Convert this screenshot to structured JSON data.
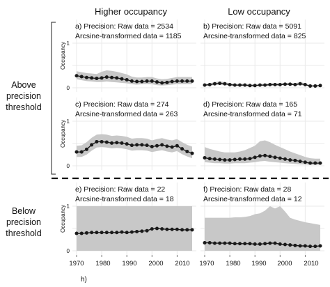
{
  "column_headers": [
    "Higher occupancy",
    "Low occupancy"
  ],
  "row_labels": {
    "above": [
      "Above",
      "precision",
      "threshold"
    ],
    "below": [
      "Below",
      "precision",
      "threshold"
    ]
  },
  "ylabel": "Occupancy",
  "xtick_labels": [
    "1970",
    "1980",
    "1990",
    "2000",
    "2010"
  ],
  "footer_label": "h)",
  "chart_data": [
    {
      "type": "line",
      "panel": "a",
      "annotation_line1": "a) Precision: Raw data = 2534",
      "annotation_line2": "Arcsine-transformed data = 1185",
      "xlim": [
        1970,
        2016
      ],
      "ylim": [
        0,
        1
      ],
      "yticks": [
        "0",
        "1"
      ],
      "x": [
        1970,
        1972,
        1974,
        1976,
        1978,
        1980,
        1982,
        1984,
        1986,
        1988,
        1990,
        1992,
        1994,
        1996,
        1998,
        2000,
        2002,
        2004,
        2006,
        2008,
        2010,
        2012,
        2014,
        2016
      ],
      "y": [
        0.27,
        0.25,
        0.23,
        0.22,
        0.21,
        0.22,
        0.24,
        0.23,
        0.22,
        0.2,
        0.18,
        0.15,
        0.14,
        0.14,
        0.15,
        0.15,
        0.13,
        0.11,
        0.12,
        0.14,
        0.15,
        0.15,
        0.15,
        0.15
      ],
      "lower": [
        0.19,
        0.17,
        0.15,
        0.14,
        0.13,
        0.13,
        0.14,
        0.13,
        0.12,
        0.11,
        0.1,
        0.08,
        0.07,
        0.08,
        0.08,
        0.08,
        0.06,
        0.05,
        0.06,
        0.07,
        0.08,
        0.08,
        0.08,
        0.08
      ],
      "upper": [
        0.37,
        0.35,
        0.33,
        0.32,
        0.31,
        0.36,
        0.39,
        0.38,
        0.36,
        0.33,
        0.3,
        0.25,
        0.23,
        0.23,
        0.24,
        0.24,
        0.21,
        0.19,
        0.2,
        0.22,
        0.24,
        0.24,
        0.24,
        0.24
      ]
    },
    {
      "type": "line",
      "panel": "b",
      "annotation_line1": "b) Precision: Raw data = 5091",
      "annotation_line2": "Arcsine-transformed data = 825",
      "xlim": [
        1970,
        2016
      ],
      "ylim": [
        0,
        1
      ],
      "yticks": [],
      "x": [
        1970,
        1972,
        1974,
        1976,
        1978,
        1980,
        1982,
        1984,
        1986,
        1988,
        1990,
        1992,
        1994,
        1996,
        1998,
        2000,
        2002,
        2004,
        2006,
        2008,
        2010,
        2012,
        2014,
        2016
      ],
      "y": [
        0.06,
        0.07,
        0.09,
        0.1,
        0.09,
        0.07,
        0.06,
        0.06,
        0.06,
        0.05,
        0.05,
        0.06,
        0.06,
        0.07,
        0.07,
        0.07,
        0.08,
        0.08,
        0.07,
        0.09,
        0.07,
        0.04,
        0.04,
        0.05
      ],
      "lower": [
        0.04,
        0.05,
        0.06,
        0.07,
        0.06,
        0.05,
        0.04,
        0.04,
        0.04,
        0.03,
        0.03,
        0.04,
        0.04,
        0.05,
        0.05,
        0.05,
        0.06,
        0.06,
        0.05,
        0.06,
        0.05,
        0.03,
        0.03,
        0.03
      ],
      "upper": [
        0.09,
        0.1,
        0.13,
        0.14,
        0.13,
        0.1,
        0.09,
        0.09,
        0.09,
        0.08,
        0.08,
        0.09,
        0.09,
        0.1,
        0.1,
        0.1,
        0.11,
        0.11,
        0.1,
        0.13,
        0.1,
        0.06,
        0.06,
        0.07
      ]
    },
    {
      "type": "line",
      "panel": "c",
      "annotation_line1": "c) Precision: Raw data = 274",
      "annotation_line2": "Arcsine-transformed data = 263",
      "xlim": [
        1970,
        2016
      ],
      "ylim": [
        0,
        1
      ],
      "yticks": [
        "0",
        "1"
      ],
      "x": [
        1970,
        1972,
        1974,
        1976,
        1978,
        1980,
        1982,
        1984,
        1986,
        1988,
        1990,
        1992,
        1994,
        1996,
        1998,
        2000,
        2002,
        2004,
        2006,
        2008,
        2010,
        2012,
        2014,
        2016
      ],
      "y": [
        0.31,
        0.31,
        0.37,
        0.47,
        0.54,
        0.54,
        0.53,
        0.51,
        0.52,
        0.51,
        0.49,
        0.46,
        0.47,
        0.47,
        0.46,
        0.43,
        0.45,
        0.47,
        0.44,
        0.42,
        0.45,
        0.38,
        0.32,
        0.28
      ],
      "lower": [
        0.2,
        0.2,
        0.25,
        0.34,
        0.41,
        0.42,
        0.41,
        0.39,
        0.4,
        0.39,
        0.37,
        0.34,
        0.35,
        0.35,
        0.34,
        0.31,
        0.33,
        0.35,
        0.32,
        0.3,
        0.33,
        0.26,
        0.21,
        0.17
      ],
      "upper": [
        0.45,
        0.46,
        0.53,
        0.63,
        0.7,
        0.71,
        0.7,
        0.67,
        0.68,
        0.67,
        0.65,
        0.61,
        0.62,
        0.62,
        0.61,
        0.57,
        0.6,
        0.62,
        0.59,
        0.57,
        0.6,
        0.53,
        0.47,
        0.43
      ]
    },
    {
      "type": "line",
      "panel": "d",
      "annotation_line1": "d) Precision: Raw data = 165",
      "annotation_line2": "Arcsine-transformed data = 71",
      "xlim": [
        1970,
        2016
      ],
      "ylim": [
        0,
        1
      ],
      "yticks": [],
      "x": [
        1970,
        1972,
        1974,
        1976,
        1978,
        1980,
        1982,
        1984,
        1986,
        1988,
        1990,
        1992,
        1994,
        1996,
        1998,
        2000,
        2002,
        2004,
        2006,
        2008,
        2010,
        2012,
        2014,
        2016
      ],
      "y": [
        0.18,
        0.16,
        0.15,
        0.14,
        0.13,
        0.13,
        0.14,
        0.15,
        0.15,
        0.16,
        0.19,
        0.22,
        0.23,
        0.21,
        0.19,
        0.17,
        0.15,
        0.13,
        0.12,
        0.1,
        0.08,
        0.06,
        0.06,
        0.06
      ],
      "lower": [
        0.08,
        0.07,
        0.06,
        0.06,
        0.05,
        0.05,
        0.06,
        0.06,
        0.06,
        0.07,
        0.08,
        0.1,
        0.11,
        0.09,
        0.08,
        0.07,
        0.06,
        0.05,
        0.04,
        0.03,
        0.03,
        0.02,
        0.02,
        0.02
      ],
      "upper": [
        0.42,
        0.38,
        0.35,
        0.32,
        0.3,
        0.3,
        0.3,
        0.32,
        0.35,
        0.4,
        0.45,
        0.55,
        0.57,
        0.53,
        0.47,
        0.42,
        0.37,
        0.32,
        0.28,
        0.24,
        0.2,
        0.17,
        0.16,
        0.16
      ]
    },
    {
      "type": "line",
      "panel": "e",
      "annotation_line1": "e) Precision: Raw data = 22",
      "annotation_line2": "Arcsine-transformed data = 18",
      "xlim": [
        1970,
        2016
      ],
      "ylim": [
        0,
        1
      ],
      "yticks": [
        "0",
        "1"
      ],
      "x": [
        1970,
        1972,
        1974,
        1976,
        1978,
        1980,
        1982,
        1984,
        1986,
        1988,
        1990,
        1992,
        1994,
        1996,
        1998,
        2000,
        2002,
        2004,
        2006,
        2008,
        2010,
        2012,
        2014,
        2016
      ],
      "y": [
        0.39,
        0.39,
        0.4,
        0.41,
        0.41,
        0.41,
        0.41,
        0.41,
        0.41,
        0.42,
        0.41,
        0.42,
        0.43,
        0.44,
        0.45,
        0.49,
        0.5,
        0.49,
        0.48,
        0.48,
        0.48,
        0.47,
        0.47,
        0.47
      ],
      "lower": [
        0.0,
        0.0,
        0.0,
        0.0,
        0.0,
        0.0,
        0.0,
        0.0,
        0.0,
        0.0,
        0.0,
        0.0,
        0.0,
        0.0,
        0.0,
        0.0,
        0.0,
        0.0,
        0.0,
        0.0,
        0.0,
        0.0,
        0.0,
        0.0
      ],
      "upper": [
        1.0,
        1.0,
        1.0,
        1.0,
        1.0,
        1.0,
        1.0,
        1.0,
        1.0,
        1.0,
        1.0,
        1.0,
        1.0,
        1.0,
        1.0,
        1.0,
        1.0,
        1.0,
        1.0,
        1.0,
        1.0,
        1.0,
        1.0,
        1.0
      ]
    },
    {
      "type": "line",
      "panel": "f",
      "annotation_line1": "f) Precision: Raw data = 28",
      "annotation_line2": "Arcsine-transformed data = 12",
      "xlim": [
        1970,
        2016
      ],
      "ylim": [
        0,
        1
      ],
      "yticks": [],
      "x": [
        1970,
        1972,
        1974,
        1976,
        1978,
        1980,
        1982,
        1984,
        1986,
        1988,
        1990,
        1992,
        1994,
        1996,
        1998,
        2000,
        2002,
        2004,
        2006,
        2008,
        2010,
        2012,
        2014,
        2016
      ],
      "y": [
        0.18,
        0.18,
        0.17,
        0.17,
        0.17,
        0.17,
        0.16,
        0.16,
        0.16,
        0.16,
        0.15,
        0.15,
        0.16,
        0.17,
        0.17,
        0.15,
        0.14,
        0.13,
        0.12,
        0.11,
        0.11,
        0.1,
        0.1,
        0.11
      ],
      "lower": [
        0.0,
        0.0,
        0.0,
        0.0,
        0.0,
        0.0,
        0.0,
        0.0,
        0.0,
        0.0,
        0.0,
        0.0,
        0.0,
        0.0,
        0.0,
        0.0,
        0.0,
        0.0,
        0.0,
        0.0,
        0.0,
        0.0,
        0.0,
        0.0
      ],
      "upper": [
        0.74,
        0.74,
        0.74,
        0.74,
        0.74,
        0.74,
        0.75,
        0.75,
        0.76,
        0.78,
        0.82,
        0.84,
        0.9,
        1.0,
        0.95,
        1.0,
        0.88,
        0.74,
        0.7,
        0.67,
        0.64,
        0.62,
        0.6,
        0.58
      ]
    }
  ]
}
